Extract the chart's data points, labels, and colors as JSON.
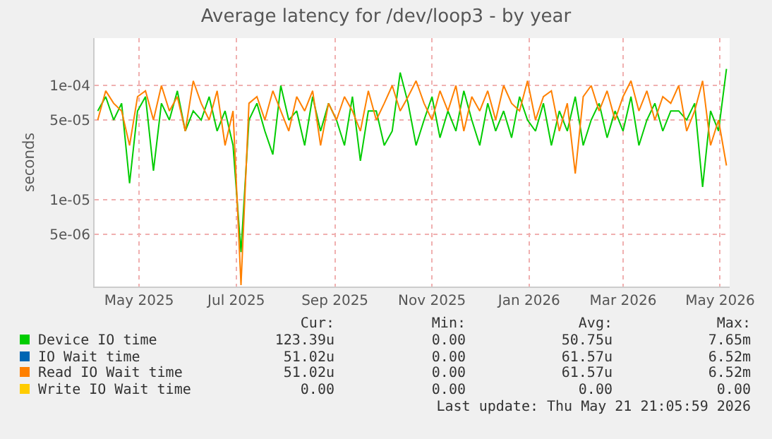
{
  "chart_data": {
    "type": "line",
    "title": "Average latency for /dev/loop3 - by year",
    "ylabel": "seconds",
    "x": [
      "2025-04-20",
      "2025-04-25",
      "2025-04-30",
      "2025-05-05",
      "2025-05-10",
      "2025-05-15",
      "2025-05-20",
      "2025-05-25",
      "2025-05-30",
      "2025-06-04",
      "2025-06-09",
      "2025-06-14",
      "2025-06-19",
      "2025-06-24",
      "2025-06-29",
      "2025-07-04",
      "2025-07-09",
      "2025-07-14",
      "2025-07-19",
      "2025-07-24",
      "2025-07-29",
      "2025-08-03",
      "2025-08-08",
      "2025-08-13",
      "2025-08-18",
      "2025-08-23",
      "2025-08-28",
      "2025-09-02",
      "2025-09-07",
      "2025-09-12",
      "2025-09-17",
      "2025-09-22",
      "2025-09-27",
      "2025-10-02",
      "2025-10-07",
      "2025-10-12",
      "2025-10-17",
      "2025-10-22",
      "2025-10-27",
      "2025-11-01",
      "2025-11-06",
      "2025-11-11",
      "2025-11-16",
      "2025-11-21",
      "2025-11-26",
      "2025-12-01",
      "2025-12-06",
      "2025-12-11",
      "2025-12-16",
      "2025-12-21",
      "2025-12-26",
      "2025-12-31",
      "2026-01-05",
      "2026-01-10",
      "2026-01-15",
      "2026-01-20",
      "2026-01-25",
      "2026-01-30",
      "2026-02-04",
      "2026-02-09",
      "2026-02-14",
      "2026-02-19",
      "2026-02-24",
      "2026-03-01",
      "2026-03-06",
      "2026-03-11",
      "2026-03-16",
      "2026-03-21",
      "2026-03-26",
      "2026-03-31",
      "2026-04-05",
      "2026-04-10",
      "2026-04-15",
      "2026-04-20",
      "2026-04-25",
      "2026-04-30",
      "2026-05-05",
      "2026-05-10",
      "2026-05-15",
      "2026-05-20"
    ],
    "series": [
      {
        "name": "Device IO time",
        "color": "#00cc00",
        "values": [
          6e-05,
          8e-05,
          5e-05,
          7e-05,
          1.4e-05,
          6e-05,
          8e-05,
          1.8e-05,
          7e-05,
          5e-05,
          9e-05,
          4e-05,
          6e-05,
          5e-05,
          8e-05,
          4e-05,
          6e-05,
          3e-05,
          3.5e-06,
          5e-05,
          7e-05,
          4e-05,
          2.5e-05,
          0.0001,
          5e-05,
          6e-05,
          3e-05,
          8e-05,
          4e-05,
          7e-05,
          5e-05,
          3e-05,
          8e-05,
          2.2e-05,
          6e-05,
          6e-05,
          3e-05,
          4e-05,
          0.00013,
          7e-05,
          3e-05,
          5e-05,
          8e-05,
          3.5e-05,
          6e-05,
          4e-05,
          9e-05,
          5e-05,
          3e-05,
          7e-05,
          4e-05,
          6e-05,
          3.5e-05,
          8e-05,
          5e-05,
          4e-05,
          7e-05,
          3e-05,
          6e-05,
          4e-05,
          8e-05,
          3e-05,
          5e-05,
          7e-05,
          3.5e-05,
          6e-05,
          4e-05,
          8e-05,
          3e-05,
          5e-05,
          7e-05,
          4e-05,
          6e-05,
          6e-05,
          5e-05,
          7e-05,
          1.3e-05,
          6e-05,
          4e-05,
          0.00014
        ]
      },
      {
        "name": "IO Wait time",
        "color": "#0066b3",
        "values": [
          null,
          null,
          null,
          null,
          null,
          null,
          null,
          null,
          null,
          null,
          null,
          null,
          null,
          null,
          null,
          null,
          null,
          null,
          null,
          null,
          null,
          null,
          null,
          null,
          null,
          null,
          null,
          null,
          null,
          null,
          null,
          null,
          null,
          null,
          null,
          null,
          null,
          null,
          null,
          null,
          null,
          null,
          null,
          null,
          null,
          null,
          null,
          null,
          null,
          null,
          null,
          null,
          null,
          null,
          null,
          null,
          null,
          null,
          null,
          null,
          null,
          null,
          null,
          null,
          null,
          null,
          null,
          null,
          null,
          null,
          null,
          null,
          null,
          null,
          null,
          null,
          null,
          null,
          null,
          null
        ]
      },
      {
        "name": "Read IO Wait time",
        "color": "#ff8000",
        "values": [
          5e-05,
          9e-05,
          7e-05,
          6e-05,
          3e-05,
          8e-05,
          9e-05,
          5e-05,
          0.0001,
          6e-05,
          8e-05,
          4e-05,
          0.00011,
          7e-05,
          5e-05,
          9e-05,
          3e-05,
          6e-05,
          1.8e-06,
          7e-05,
          8e-05,
          5e-05,
          9e-05,
          6e-05,
          4e-05,
          8e-05,
          6e-05,
          9e-05,
          3e-05,
          7e-05,
          5e-05,
          8e-05,
          6e-05,
          4e-05,
          9e-05,
          5e-05,
          7e-05,
          0.0001,
          6e-05,
          8e-05,
          0.00011,
          7e-05,
          5e-05,
          9e-05,
          6e-05,
          0.0001,
          4e-05,
          8e-05,
          6e-05,
          9e-05,
          5e-05,
          0.0001,
          7e-05,
          6e-05,
          0.00011,
          5e-05,
          8e-05,
          9e-05,
          4e-05,
          7e-05,
          1.7e-05,
          8e-05,
          0.0001,
          6e-05,
          9e-05,
          5e-05,
          8e-05,
          0.00011,
          6e-05,
          9e-05,
          5e-05,
          8e-05,
          7e-05,
          0.0001,
          4e-05,
          6e-05,
          0.00011,
          3e-05,
          5e-05,
          2e-05
        ]
      },
      {
        "name": "Write IO Wait time",
        "color": "#ffcc00",
        "values": [
          null,
          null,
          null,
          null,
          null,
          null,
          null,
          null,
          null,
          null,
          null,
          null,
          null,
          null,
          null,
          null,
          null,
          null,
          null,
          null,
          null,
          null,
          null,
          null,
          null,
          null,
          null,
          null,
          null,
          null,
          null,
          null,
          null,
          null,
          null,
          null,
          null,
          null,
          null,
          null,
          null,
          null,
          null,
          null,
          null,
          null,
          null,
          null,
          null,
          null,
          null,
          null,
          null,
          null,
          null,
          null,
          null,
          null,
          null,
          null,
          null,
          null,
          null,
          null,
          null,
          null,
          null,
          null,
          null,
          null,
          null,
          null,
          null,
          null,
          null,
          null,
          null,
          null,
          null,
          null
        ]
      }
    ],
    "log": "y",
    "xlim": [
      "2025-04-18",
      "2026-05-22"
    ],
    "xticks": [
      {
        "value": "2025-05-16",
        "label": "May 2025"
      },
      {
        "value": "2025-07-16",
        "label": "Jul 2025"
      },
      {
        "value": "2025-09-16",
        "label": "Sep 2025"
      },
      {
        "value": "2025-11-16",
        "label": "Nov 2025"
      },
      {
        "value": "2026-01-16",
        "label": "Jan 2026"
      },
      {
        "value": "2026-03-16",
        "label": "Mar 2026"
      },
      {
        "value": "2026-05-16",
        "label": "May 2026"
      }
    ],
    "ylim": [
      1.75e-06,
      0.00026
    ],
    "yticks": [
      {
        "value": 5e-06,
        "label": "5e-06"
      },
      {
        "value": 1e-05,
        "label": "1e-05"
      },
      {
        "value": 5e-05,
        "label": "5e-05"
      },
      {
        "value": 0.0001,
        "label": "1e-04"
      }
    ],
    "grid": true,
    "legend": "bottom",
    "marker": "none",
    "line_style": "solid",
    "annotations": [
      "Cur:",
      "Min:",
      "Avg:",
      "Max:",
      "123.39u",
      "0.00",
      "50.75u",
      "7.65m",
      "51.02u",
      "0.00",
      "61.57u",
      "6.52m",
      "51.02u",
      "0.00",
      "61.57u",
      "6.52m",
      "0.00",
      "0.00",
      "0.00",
      "0.00",
      "Last update: Thu May 21 21:05:59 2026"
    ]
  }
}
